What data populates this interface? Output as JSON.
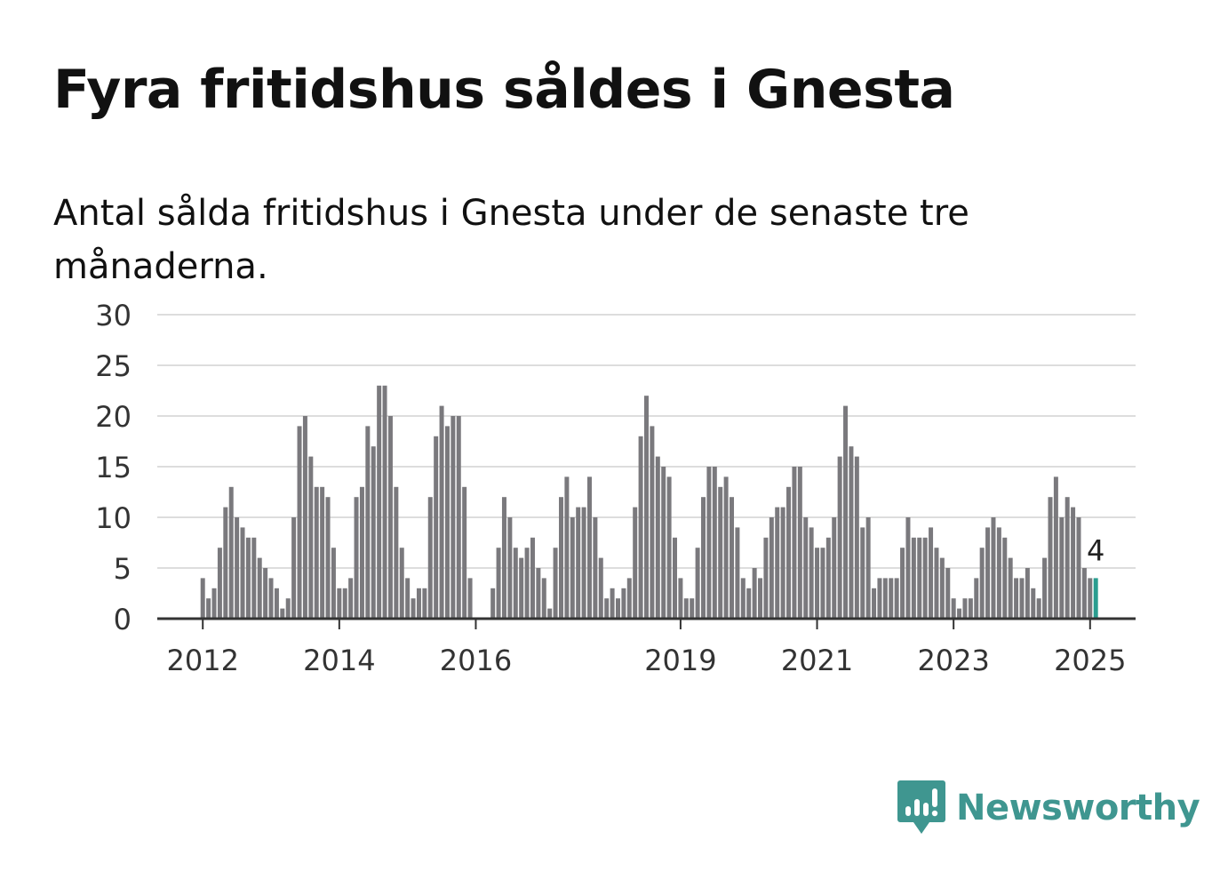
{
  "header": {
    "title": "Fyra fritidshus såldes i Gnesta",
    "subtitle": "Antal sålda fritidshus i Gnesta under de senaste tre månaderna."
  },
  "brand": {
    "name": "Newsworthy",
    "color": "#3f9690",
    "icon": "bar-chart-speech-bubble-icon"
  },
  "colors": {
    "bar": "#7a797d",
    "highlight": "#2a9d8f",
    "grid": "#dddddd",
    "axis": "#333333"
  },
  "chart_data": {
    "type": "bar",
    "title": "Fyra fritidshus såldes i Gnesta",
    "subtitle": "Antal sålda fritidshus i Gnesta under de senaste tre månaderna.",
    "xlabel": "",
    "ylabel": "",
    "ylim": [
      0,
      30
    ],
    "yticks": [
      0,
      5,
      10,
      15,
      20,
      25,
      30
    ],
    "grid": true,
    "legend": "none",
    "x_range": [
      "2011-05",
      "2025-09"
    ],
    "x_ticks": [
      {
        "label": "2012",
        "month": "2012-01"
      },
      {
        "label": "2014",
        "month": "2014-01"
      },
      {
        "label": "2016",
        "month": "2016-01"
      },
      {
        "label": "2019",
        "month": "2019-01"
      },
      {
        "label": "2021",
        "month": "2021-01"
      },
      {
        "label": "2023",
        "month": "2023-01"
      },
      {
        "label": "2025",
        "month": "2025-01"
      }
    ],
    "start_month": "2012-01",
    "values": [
      4,
      2,
      3,
      7,
      11,
      13,
      10,
      9,
      8,
      8,
      6,
      5,
      4,
      3,
      1,
      2,
      10,
      19,
      20,
      16,
      13,
      13,
      12,
      7,
      3,
      3,
      4,
      12,
      13,
      19,
      17,
      23,
      23,
      20,
      13,
      7,
      4,
      2,
      3,
      3,
      12,
      18,
      21,
      19,
      20,
      20,
      13,
      4,
      0,
      0,
      0,
      3,
      7,
      12,
      10,
      7,
      6,
      7,
      8,
      5,
      4,
      1,
      7,
      12,
      14,
      10,
      11,
      11,
      14,
      10,
      6,
      2,
      3,
      2,
      3,
      4,
      11,
      18,
      22,
      19,
      16,
      15,
      14,
      8,
      4,
      2,
      2,
      7,
      12,
      15,
      15,
      13,
      14,
      12,
      9,
      4,
      3,
      5,
      4,
      8,
      10,
      11,
      11,
      13,
      15,
      15,
      10,
      9,
      7,
      7,
      8,
      10,
      16,
      21,
      17,
      16,
      9,
      10,
      3,
      4,
      4,
      4,
      4,
      7,
      10,
      8,
      8,
      8,
      9,
      7,
      6,
      5,
      2,
      1,
      2,
      2,
      4,
      7,
      9,
      10,
      9,
      8,
      6,
      4,
      4,
      5,
      3,
      2,
      6,
      12,
      14,
      10,
      12,
      11,
      10,
      5,
      4,
      4
    ],
    "highlight": {
      "month": "2025-02",
      "value": 4,
      "label": "4"
    }
  }
}
